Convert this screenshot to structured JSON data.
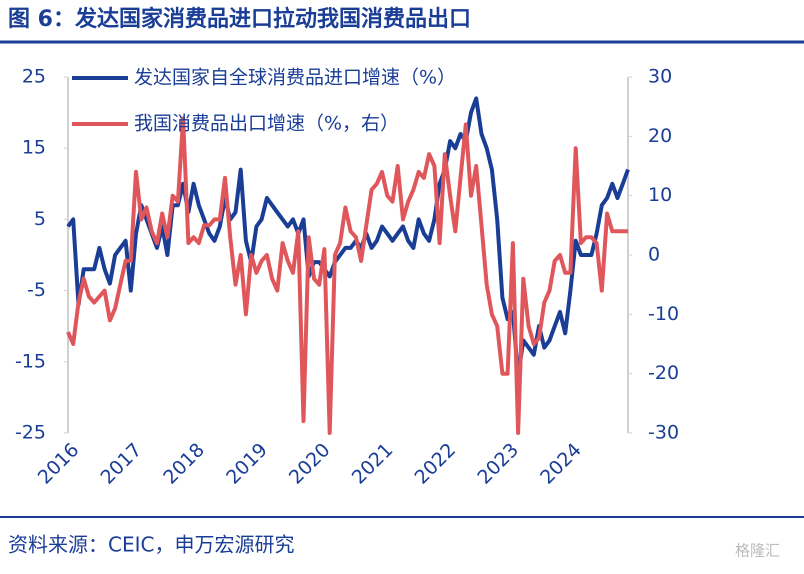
{
  "header": {
    "title": "图 6：发达国家消费品进口拉动我国消费品出口"
  },
  "chart_data": {
    "type": "line",
    "categories": [
      "2016",
      null,
      null,
      null,
      null,
      null,
      null,
      null,
      null,
      null,
      null,
      null,
      "2017",
      null,
      null,
      null,
      null,
      null,
      null,
      null,
      null,
      null,
      null,
      null,
      "2018",
      null,
      null,
      null,
      null,
      null,
      null,
      null,
      null,
      null,
      null,
      null,
      "2019",
      null,
      null,
      null,
      null,
      null,
      null,
      null,
      null,
      null,
      null,
      null,
      "2020",
      null,
      null,
      null,
      null,
      null,
      null,
      null,
      null,
      null,
      null,
      null,
      "2021",
      null,
      null,
      null,
      null,
      null,
      null,
      null,
      null,
      null,
      null,
      null,
      "2022",
      null,
      null,
      null,
      null,
      null,
      null,
      null,
      null,
      null,
      null,
      null,
      "2023",
      null,
      null,
      null,
      null,
      null,
      null,
      null,
      null,
      null,
      null,
      null,
      "2024",
      null,
      null,
      null,
      null,
      null,
      null,
      null,
      null,
      null,
      null,
      null
    ],
    "series": [
      {
        "name": "发达国家自全球消费品进口增速（%）",
        "color": "#1a3d96",
        "axis": "y",
        "values": [
          4,
          5,
          -7,
          -2,
          -2,
          -2,
          1,
          -2,
          -4,
          0,
          1,
          2,
          -5,
          3,
          7,
          5,
          3,
          1,
          4,
          0,
          7,
          7,
          10,
          6,
          10,
          7,
          5,
          3,
          2,
          4,
          8,
          5,
          6,
          12,
          2,
          -1,
          4,
          5,
          8,
          7,
          6,
          5,
          4,
          5,
          3,
          5,
          -3,
          -1,
          -1,
          -2,
          -3,
          -1,
          0,
          1,
          1,
          2,
          1,
          3,
          1,
          2,
          4,
          3,
          2,
          3,
          4,
          2,
          1,
          5,
          3,
          2,
          5,
          10,
          12,
          16,
          15,
          17,
          16,
          20,
          22,
          17,
          15,
          12,
          5,
          -6,
          -9,
          -8,
          -17,
          -12,
          -13,
          -14,
          -10,
          -13,
          -12,
          -10,
          -8,
          -11,
          -5,
          2,
          0,
          0,
          0,
          3,
          7,
          8,
          10,
          8,
          10,
          12
        ]
      },
      {
        "name": "我国消费品出口增速（%，右）",
        "color": "#e0575b",
        "axis": "y2",
        "values": [
          -13,
          -15,
          -8,
          -4,
          -7,
          -8,
          -7,
          -6,
          -11,
          -9,
          -5,
          -1,
          -1,
          14,
          6,
          8,
          4,
          2,
          7,
          3,
          10,
          9,
          23,
          2,
          3,
          2,
          5,
          5,
          6,
          6,
          13,
          3,
          -5,
          0,
          -10,
          0,
          -3,
          -1,
          0,
          -4,
          -6,
          2,
          -1,
          -3,
          4,
          -28,
          3,
          -4,
          -5,
          1,
          -30,
          0,
          2,
          8,
          4,
          3,
          -1,
          5,
          11,
          12,
          14,
          10,
          9,
          15,
          6,
          9,
          11,
          14,
          13,
          17,
          15,
          2,
          17,
          10,
          4,
          13,
          22,
          10,
          15,
          5,
          -5,
          -10,
          -12,
          -20,
          -20,
          2,
          -30,
          -4,
          -12,
          -15,
          -14,
          -8,
          -6,
          -1,
          0,
          -3,
          -3,
          18,
          2,
          3,
          3,
          2,
          -6,
          7,
          4,
          4,
          4,
          4
        ]
      }
    ],
    "ylim": [
      -25,
      25
    ],
    "yticks": [
      -25,
      -15,
      -5,
      5,
      15,
      25
    ],
    "y2lim": [
      -30,
      30
    ],
    "y2ticks": [
      -30,
      -20,
      -10,
      0,
      10,
      20,
      30
    ]
  },
  "footer": {
    "source": "资料来源：CEIC，申万宏源研究",
    "watermark": "格隆汇"
  }
}
